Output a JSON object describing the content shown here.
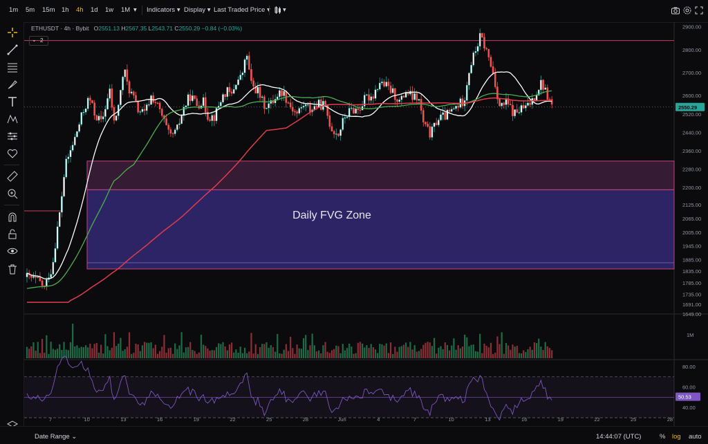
{
  "toolbar": {
    "timeframes": [
      "1m",
      "5m",
      "15m",
      "1h",
      "4h",
      "1d",
      "1w",
      "1M"
    ],
    "active_timeframe": "4h",
    "indicators_label": "Indicators",
    "display_label": "Display",
    "last_traded_label": "Last Traded Price",
    "icons": [
      "camera-icon",
      "settings-gear-icon",
      "fullscreen-icon"
    ]
  },
  "left_tools": [
    "crosshair-icon",
    "trendline-icon",
    "fib-icon",
    "brush-icon",
    "text-icon",
    "pattern-icon",
    "projection-icon",
    "heart-icon",
    "ruler-icon",
    "zoom-icon",
    "magnet-icon",
    "lock-icon",
    "eye-icon",
    "trash-icon",
    "layers-icon"
  ],
  "legend": {
    "symbol": "ETHUSDT",
    "interval": "4h",
    "exchange": "Bybit",
    "open_label": "O",
    "open": "2551.13",
    "high_label": "H",
    "high": "2567.35",
    "low_label": "L",
    "low": "2543.71",
    "close_label": "C",
    "close": "2550.29",
    "change": "−0.84 (−0.03%)",
    "indicator_count": "2"
  },
  "bottom": {
    "date_range_label": "Date Range",
    "time": "14:44:07 (UTC)",
    "percent_label": "%",
    "log_label": "log",
    "auto_label": "auto"
  },
  "chart_data": {
    "type": "candlestick",
    "title": "",
    "price_ticks": [
      "2900.00",
      "2800.00",
      "2700.00",
      "2600.00",
      "2520.00",
      "2440.00",
      "2360.00",
      "2280.00",
      "2200.00",
      "2125.00",
      "2065.00",
      "2005.00",
      "1945.00",
      "1885.00",
      "1835.00",
      "1785.00",
      "1735.00",
      "1691.00",
      "1649.00"
    ],
    "last_price": "2550.29",
    "y_range": [
      1649,
      2920
    ],
    "x_ticks": [
      "7",
      "10",
      "13",
      "16",
      "19",
      "22",
      "25",
      "28",
      "Jun",
      "4",
      "7",
      "10",
      "13",
      "16",
      "19",
      "22",
      "25",
      "28"
    ],
    "fvg_zone": {
      "label": "Daily FVG Zone",
      "top": 2315,
      "mid": 2190,
      "bottom": 1845
    },
    "horizontal_lines": [
      {
        "price": 2840,
        "color": "#b23a52"
      },
      {
        "price": 2098,
        "color": "#b23a52"
      }
    ],
    "volume_label": "1M",
    "rsi": {
      "ticks": [
        "80.00",
        "60.00",
        "40.00"
      ],
      "value": "50.53",
      "upper": 70,
      "lower": 30
    },
    "colors": {
      "up": "#26a69a",
      "down": "#ef5350",
      "fvg_fill": "#3c2f8c",
      "ma_white": "#ffffff",
      "ma_green": "#4caf50",
      "ma_red": "#e23c4c",
      "rsi_line": "#7e57c2",
      "price_label_bg": "#26a69a"
    }
  }
}
